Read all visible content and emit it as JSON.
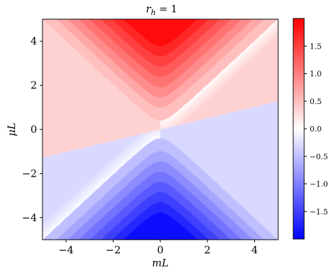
{
  "chart_data": {
    "type": "heatmap",
    "title": "r_h = 1",
    "title_parts": {
      "var": "r",
      "sub": "h",
      "rest": " = 1"
    },
    "xlabel": "mL",
    "ylabel": "μL",
    "xlim": [
      -5,
      5
    ],
    "ylim": [
      -5,
      5
    ],
    "xticks": [
      -4,
      -2,
      0,
      2,
      4
    ],
    "yticks": [
      -4,
      -2,
      0,
      2,
      4
    ],
    "xtick_labels": [
      "−4",
      "−2",
      "0",
      "2",
      "4"
    ],
    "ytick_labels": [
      "−4",
      "−2",
      "0",
      "2",
      "4"
    ],
    "colormap": "bwr",
    "colormap_colors": {
      "low": "#0000ff",
      "mid": "#ffffff",
      "high": "#ff0000"
    },
    "color_range": [
      -2,
      2
    ],
    "colorbar_ticks": [
      1.5,
      1.0,
      0.5,
      0.0,
      -0.5,
      -1.0,
      -1.5
    ],
    "colorbar_tick_labels": [
      "1.5",
      "1.0",
      "0.5",
      "0.0",
      "−0.5",
      "−1.0",
      "−1.5"
    ],
    "description_values": {
      "upper_left_region": 0.35,
      "lower_right_region": -0.3,
      "cone_levels_top": [
        0.5,
        0.7,
        0.9,
        1.1,
        1.3,
        1.5,
        1.7,
        1.9
      ],
      "cone_levels_bottom": [
        -0.5,
        -0.7,
        -0.9,
        -1.1,
        -1.3,
        -1.5,
        -1.7,
        -1.9
      ],
      "separatrix_slope": 0.255,
      "cone_vertex_abs_mu": 0.4
    }
  }
}
